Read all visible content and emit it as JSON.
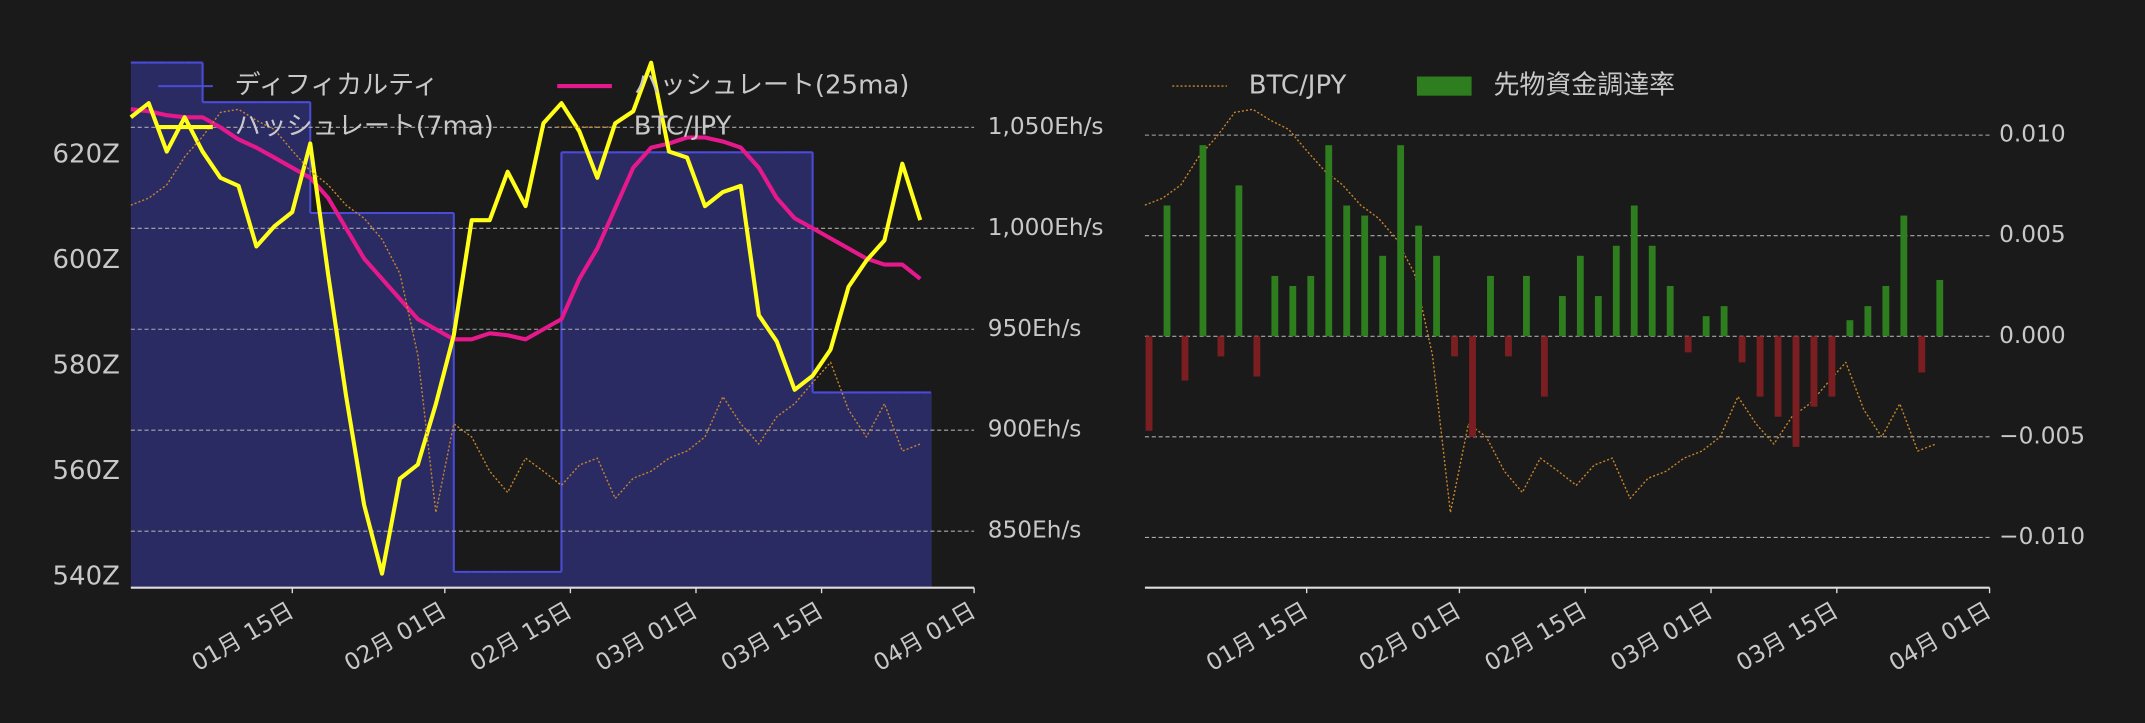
{
  "chart_data": [
    {
      "type": "combo",
      "x": [
        "12-28",
        "12-30",
        "01-01",
        "01-03",
        "01-05",
        "01-07",
        "01-09",
        "01-11",
        "01-13",
        "01-15",
        "01-17",
        "01-19",
        "01-21",
        "01-23",
        "01-25",
        "01-27",
        "01-29",
        "01-31",
        "02-02",
        "02-04",
        "02-06",
        "02-08",
        "02-10",
        "02-12",
        "02-14",
        "02-16",
        "02-18",
        "02-20",
        "02-22",
        "02-24",
        "02-26",
        "02-28",
        "03-02",
        "03-04",
        "03-06",
        "03-08",
        "03-10",
        "03-12",
        "03-14",
        "03-16",
        "03-18",
        "03-20",
        "03-22",
        "03-24",
        "03-26"
      ],
      "xlim": [
        "12-28",
        "04-01"
      ],
      "xticks": [
        {
          "value": "01-15",
          "label": "01月 15日"
        },
        {
          "value": "02-01",
          "label": "02月 01日"
        },
        {
          "value": "02-15",
          "label": "02月 15日"
        },
        {
          "value": "03-01",
          "label": "03月 01日"
        },
        {
          "value": "03-15",
          "label": "03月 15日"
        },
        {
          "value": "04-01",
          "label": "04月 01日"
        }
      ],
      "ylim": [
        538,
        639
      ],
      "yticks": [
        {
          "value": 540,
          "label": "540Z"
        },
        {
          "value": 560,
          "label": "560Z"
        },
        {
          "value": 580,
          "label": "580Z"
        },
        {
          "value": 600,
          "label": "600Z"
        },
        {
          "value": 620,
          "label": "620Z"
        }
      ],
      "y2lim": [
        822,
        1086
      ],
      "y2ticks": [
        {
          "value": 850,
          "label": "850Eh/s"
        },
        {
          "value": 900,
          "label": "900Eh/s"
        },
        {
          "value": 950,
          "label": "950Eh/s"
        },
        {
          "value": 1000,
          "label": "1,000Eh/s"
        },
        {
          "value": 1050,
          "label": "1,050Eh/s"
        }
      ],
      "grid": true,
      "series": [
        {
          "name": "ディフィカルティ",
          "kind": "step-area",
          "color": "#4b4bd8",
          "fill": "#2b2b63",
          "values": [
            637.5,
            637.5,
            637.5,
            637.5,
            630,
            630,
            630,
            630,
            630,
            630,
            609,
            609,
            609,
            609,
            609,
            609,
            609,
            609,
            541,
            541,
            541,
            541,
            541,
            541,
            620.5,
            620.5,
            620.5,
            620.5,
            620.5,
            620.5,
            620.5,
            620.5,
            620.5,
            620.5,
            620.5,
            620.5,
            620.5,
            620.5,
            575,
            575,
            575,
            575,
            575,
            575,
            575
          ]
        },
        {
          "name": "ハッシュレート(25ma)",
          "kind": "line",
          "axis": "y2",
          "color": "#e6198c",
          "values": [
            1059,
            1058,
            1056,
            1055,
            1055,
            1050,
            1044,
            1040,
            1035,
            1030,
            1025,
            1015,
            1000,
            985,
            975,
            965,
            955,
            950,
            945,
            945,
            948,
            947,
            945,
            950,
            955,
            975,
            990,
            1010,
            1030,
            1040,
            1042,
            1045,
            1045,
            1043,
            1040,
            1030,
            1015,
            1005,
            1000,
            995,
            990,
            985,
            982,
            982,
            975
          ]
        },
        {
          "name": "ハッシュレート(7ma)",
          "kind": "line",
          "axis": "y2",
          "color": "#ffff1a",
          "values": [
            1055,
            1062,
            1038,
            1055,
            1038,
            1025,
            1021,
            991,
            1001,
            1008,
            1042,
            977,
            917,
            863,
            829,
            876,
            883,
            913,
            947,
            1004,
            1004,
            1028,
            1011,
            1052,
            1062,
            1048,
            1025,
            1052,
            1058,
            1082,
            1038,
            1035,
            1011,
            1018,
            1021,
            957,
            944,
            920,
            927,
            940,
            971,
            984,
            994,
            1032,
            1004
          ]
        },
        {
          "name": "BTC/JPY",
          "kind": "dotted",
          "color": "#c8862a",
          "values": [
            15.05,
            15.12,
            15.25,
            15.53,
            15.73,
            15.97,
            16.0,
            15.89,
            15.8,
            15.59,
            15.39,
            15.25,
            15.05,
            14.92,
            14.71,
            14.37,
            13.56,
            12.0,
            12.88,
            12.75,
            12.41,
            12.2,
            12.54,
            12.41,
            12.27,
            12.47,
            12.54,
            12.14,
            12.34,
            12.41,
            12.54,
            12.61,
            12.75,
            13.15,
            12.88,
            12.68,
            12.95,
            13.08,
            13.29,
            13.49,
            13.02,
            12.75,
            13.08,
            12.61,
            12.68
          ]
        }
      ]
    },
    {
      "type": "combo",
      "x": [
        "12-28",
        "12-30",
        "01-01",
        "01-03",
        "01-05",
        "01-07",
        "01-09",
        "01-11",
        "01-13",
        "01-15",
        "01-17",
        "01-19",
        "01-21",
        "01-23",
        "01-25",
        "01-27",
        "01-29",
        "01-31",
        "02-02",
        "02-04",
        "02-06",
        "02-08",
        "02-10",
        "02-12",
        "02-14",
        "02-16",
        "02-18",
        "02-20",
        "02-22",
        "02-24",
        "02-26",
        "02-28",
        "03-02",
        "03-04",
        "03-06",
        "03-08",
        "03-10",
        "03-12",
        "03-14",
        "03-16",
        "03-18",
        "03-20",
        "03-22",
        "03-24",
        "03-26"
      ],
      "xlim": [
        "12-28",
        "04-01"
      ],
      "xticks": [
        {
          "value": "01-15",
          "label": "01月 15日"
        },
        {
          "value": "02-01",
          "label": "02月 01日"
        },
        {
          "value": "02-15",
          "label": "02月 15日"
        },
        {
          "value": "03-01",
          "label": "03月 01日"
        },
        {
          "value": "03-15",
          "label": "03月 15日"
        },
        {
          "value": "04-01",
          "label": "04月 01日"
        }
      ],
      "y2lim": [
        -0.0125,
        0.014
      ],
      "y2ticks": [
        {
          "value": -0.01,
          "label": "−0.010"
        },
        {
          "value": -0.005,
          "label": "−0.005"
        },
        {
          "value": 0,
          "label": "0.000"
        },
        {
          "value": 0.005,
          "label": "0.005"
        },
        {
          "value": 0.01,
          "label": "0.010"
        }
      ],
      "grid": true,
      "series": [
        {
          "name": "BTC/JPY",
          "kind": "dotted",
          "color": "#c8862a",
          "values": [
            15.05,
            15.12,
            15.25,
            15.53,
            15.73,
            15.97,
            16.0,
            15.89,
            15.8,
            15.59,
            15.39,
            15.25,
            15.05,
            14.92,
            14.71,
            14.37,
            13.56,
            12.0,
            12.88,
            12.75,
            12.41,
            12.2,
            12.54,
            12.41,
            12.27,
            12.47,
            12.54,
            12.14,
            12.34,
            12.41,
            12.54,
            12.61,
            12.75,
            13.15,
            12.88,
            12.68,
            12.95,
            13.08,
            13.29,
            13.49,
            13.02,
            12.75,
            13.08,
            12.61,
            12.68
          ]
        },
        {
          "name": "先物資金調達率",
          "kind": "bar",
          "axis": "y2",
          "color": "#2e7d1e",
          "negative_color": "#7b1e22",
          "values": [
            -0.0047,
            0.0065,
            -0.0022,
            0.0095,
            -0.001,
            0.0075,
            -0.002,
            0.003,
            0.0025,
            0.003,
            0.0095,
            0.0065,
            0.006,
            0.004,
            0.0095,
            0.0055,
            0.004,
            -0.001,
            -0.005,
            0.003,
            -0.001,
            0.003,
            -0.003,
            0.002,
            0.004,
            0.002,
            0.0045,
            0.0065,
            0.0045,
            0.0025,
            -0.0008,
            0.001,
            0.0015,
            -0.0013,
            -0.003,
            -0.004,
            -0.0055,
            -0.0035,
            -0.003,
            0.0008,
            0.0015,
            0.0025,
            0.006,
            -0.0018,
            0.0028
          ]
        }
      ]
    }
  ]
}
